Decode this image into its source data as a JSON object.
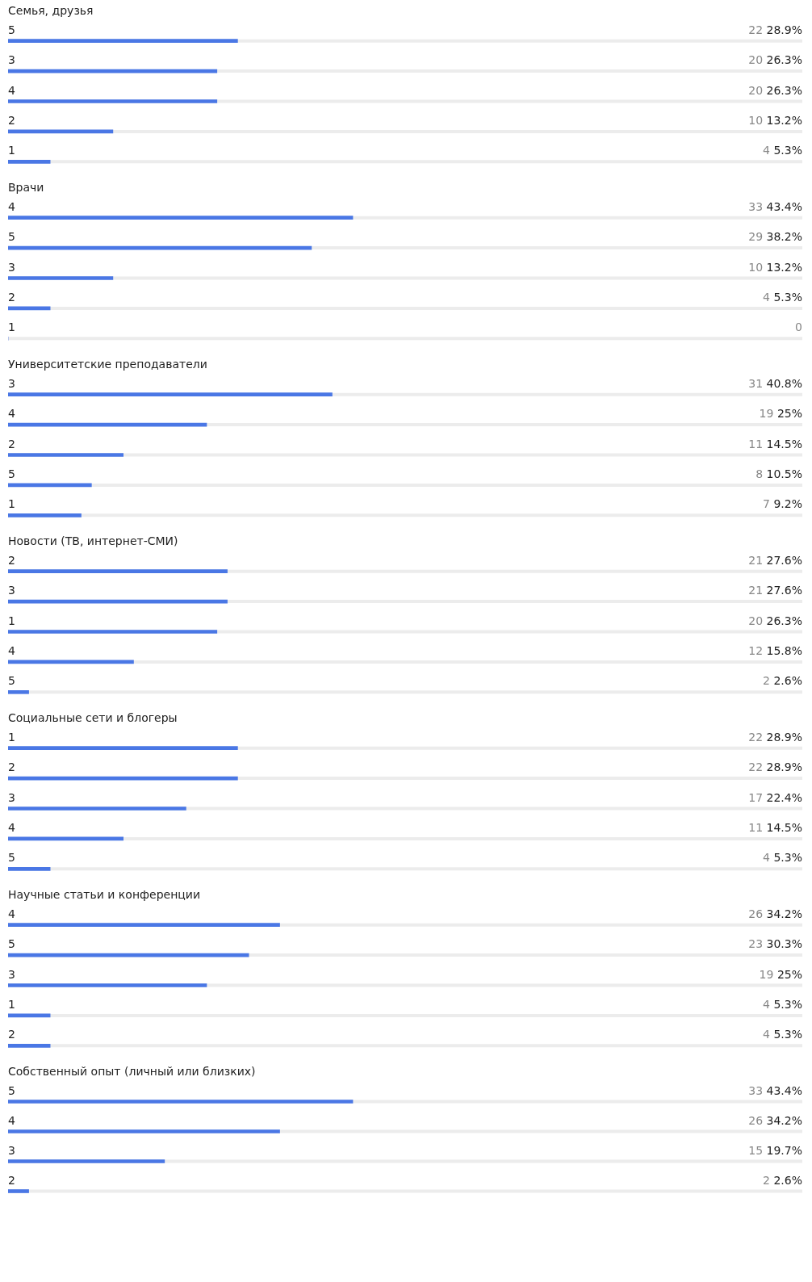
{
  "chart_data": [
    {
      "type": "bar",
      "orientation": "horizontal",
      "title": "Семья, друзья",
      "categories": [
        "5",
        "3",
        "4",
        "2",
        "1"
      ],
      "values": [
        28.9,
        26.3,
        26.3,
        13.2,
        5.3
      ],
      "value_labels": [
        "22 28.9%",
        "20 26.3%",
        "20 26.3%",
        "10 13.2%",
        "4 5.3%"
      ],
      "color": "#4a77e5",
      "xlim": [
        0,
        100
      ],
      "tick_labels": false
    },
    {
      "type": "bar",
      "orientation": "horizontal",
      "title": "Врачи",
      "categories": [
        "4",
        "5",
        "3",
        "2",
        "1"
      ],
      "values": [
        43.4,
        38.2,
        13.2,
        5.3,
        0
      ],
      "value_labels": [
        "33 43.4%",
        "29 38.2%",
        "10 13.2%",
        "4 5.3%",
        "0"
      ],
      "color": "#4a77e5",
      "xlim": [
        0,
        100
      ],
      "tick_labels": false
    },
    {
      "type": "bar",
      "orientation": "horizontal",
      "title": "Университетские преподаватели",
      "categories": [
        "3",
        "4",
        "2",
        "5",
        "1"
      ],
      "values": [
        40.8,
        25,
        14.5,
        10.5,
        9.2
      ],
      "value_labels": [
        "31 40.8%",
        "19 25%",
        "11 14.5%",
        "8 10.5%",
        "7 9.2%"
      ],
      "color": "#4a77e5",
      "xlim": [
        0,
        100
      ],
      "tick_labels": false
    },
    {
      "type": "bar",
      "orientation": "horizontal",
      "title": "Новости (ТВ, интернет-СМИ)",
      "categories": [
        "2",
        "3",
        "1",
        "4",
        "5"
      ],
      "values": [
        27.6,
        27.6,
        26.3,
        15.8,
        2.6
      ],
      "value_labels": [
        "21 27.6%",
        "21 27.6%",
        "20 26.3%",
        "12 15.8%",
        "2 2.6%"
      ],
      "color": "#4a77e5",
      "xlim": [
        0,
        100
      ],
      "tick_labels": false
    },
    {
      "type": "bar",
      "orientation": "horizontal",
      "title": "Социальные сети и блогеры",
      "categories": [
        "1",
        "2",
        "3",
        "4",
        "5"
      ],
      "values": [
        28.9,
        28.9,
        22.4,
        14.5,
        5.3
      ],
      "value_labels": [
        "22 28.9%",
        "22 28.9%",
        "17 22.4%",
        "11 14.5%",
        "4 5.3%"
      ],
      "color": "#4a77e5",
      "xlim": [
        0,
        100
      ],
      "tick_labels": false
    },
    {
      "type": "bar",
      "orientation": "horizontal",
      "title": "Научные статьи и конференции",
      "categories": [
        "4",
        "5",
        "3",
        "1",
        "2"
      ],
      "values": [
        34.2,
        30.3,
        25,
        5.3,
        5.3
      ],
      "value_labels": [
        "26 34.2%",
        "23 30.3%",
        "19 25%",
        "4 5.3%",
        "4 5.3%"
      ],
      "color": "#4a77e5",
      "xlim": [
        0,
        100
      ],
      "tick_labels": false
    },
    {
      "type": "bar",
      "orientation": "horizontal",
      "title": "Собственный опыт (личный или близких)",
      "categories": [
        "5",
        "4",
        "3",
        "2"
      ],
      "values": [
        43.4,
        34.2,
        19.7,
        2.6
      ],
      "value_labels": [
        "33 43.4%",
        "26 34.2%",
        "15 19.7%",
        "2 2.6%"
      ],
      "color": "#4a77e5",
      "xlim": [
        0,
        100
      ],
      "tick_labels": false
    }
  ]
}
